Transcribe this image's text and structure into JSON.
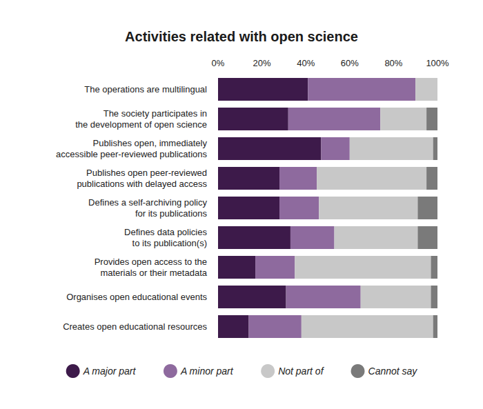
{
  "chart_data": {
    "type": "bar",
    "title": "Activities related with open science",
    "orientation": "horizontal",
    "stacked": true,
    "grid": false,
    "legend": "bottom",
    "categories": [
      "The operations are multilingual",
      "The society participates in\nthe development of open science",
      "Publishes open, immediately\naccessible peer-reviewed publications",
      "Publishes open peer-reviewed\npublications with delayed access",
      "Defines a self-archiving policy\nfor its publications",
      "Defines data policies\nto its publication(s)",
      "Provides open access to the\nmaterials or their metadata",
      "Organises open educational events",
      "Creates open educational resources"
    ],
    "series": [
      {
        "name": "A major part",
        "color": "#3d1a4a",
        "values": [
          41,
          32,
          47,
          28,
          28,
          33,
          17,
          31,
          14
        ]
      },
      {
        "name": "A minor part",
        "color": "#8e6a9e",
        "values": [
          49,
          42,
          13,
          17,
          18,
          20,
          18,
          34,
          24
        ]
      },
      {
        "name": "Not part of",
        "color": "#c8c8c8",
        "values": [
          10,
          21,
          38,
          50,
          45,
          38,
          62,
          32,
          60
        ]
      },
      {
        "name": "Cannot say",
        "color": "#7a7a7a",
        "values": [
          0,
          5,
          2,
          5,
          9,
          9,
          3,
          3,
          2
        ]
      }
    ],
    "xlim": [
      0,
      100
    ],
    "xticks": [
      {
        "value": 0,
        "label": "0%"
      },
      {
        "value": 20,
        "label": "20%"
      },
      {
        "value": 40,
        "label": "40%"
      },
      {
        "value": 60,
        "label": "60%"
      },
      {
        "value": 80,
        "label": "80%"
      },
      {
        "value": 100,
        "label": "100%"
      }
    ]
  }
}
